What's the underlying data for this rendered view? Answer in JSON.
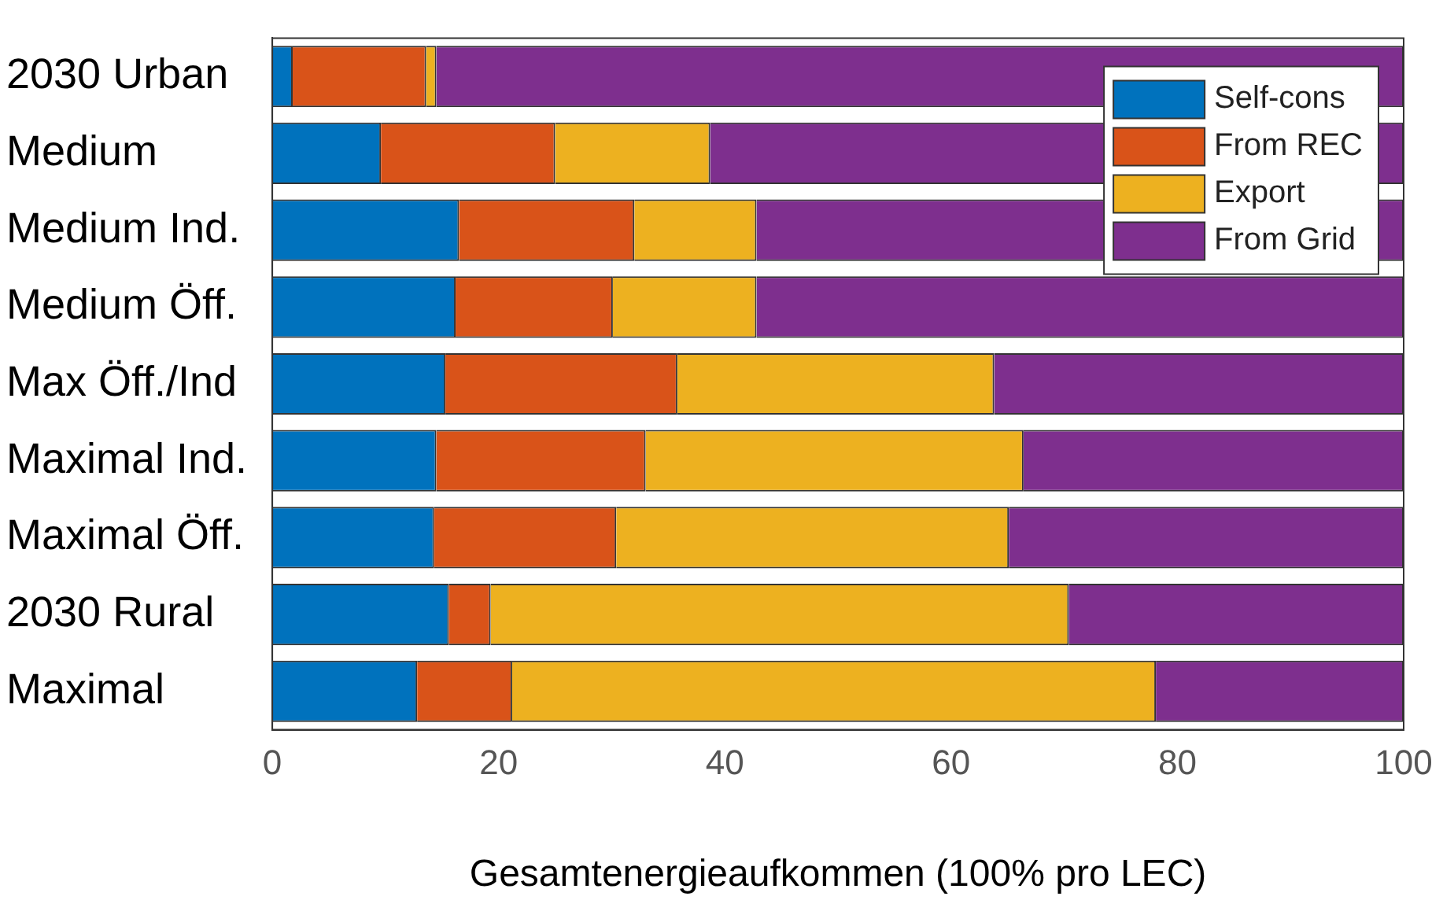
{
  "chart_data": {
    "type": "bar",
    "orientation": "horizontal",
    "stacked": true,
    "xlabel": "Gesamtenergieaufkommen (100% pro LEC)",
    "categories": [
      "2030 Urban",
      "Medium",
      "Medium Ind.",
      "Medium Öff.",
      "Max Öff./Ind",
      "Maximal Ind.",
      "Maximal Öff.",
      "2030 Rural",
      "Maximal"
    ],
    "series": [
      {
        "name": "Self-cons",
        "color": "#0072bd",
        "values": [
          1.8,
          9.6,
          16.5,
          16.2,
          15.3,
          14.5,
          14.3,
          15.6,
          12.8
        ]
      },
      {
        "name": "From REC",
        "color": "#d95319",
        "values": [
          11.8,
          15.4,
          15.5,
          13.9,
          20.5,
          18.5,
          16.1,
          3.7,
          8.4
        ]
      },
      {
        "name": "Export",
        "color": "#edb120",
        "values": [
          0.9,
          13.7,
          10.8,
          12.7,
          28.0,
          33.4,
          34.7,
          51.1,
          56.9
        ]
      },
      {
        "name": "From Grid",
        "color": "#7e2f8e",
        "values": [
          85.5,
          61.3,
          57.2,
          57.2,
          36.2,
          33.6,
          34.9,
          29.6,
          21.9
        ]
      }
    ],
    "xlim": [
      0,
      100
    ],
    "xticks": [
      0,
      20,
      40,
      60,
      80,
      100
    ],
    "grid": false,
    "legend": "top right"
  }
}
